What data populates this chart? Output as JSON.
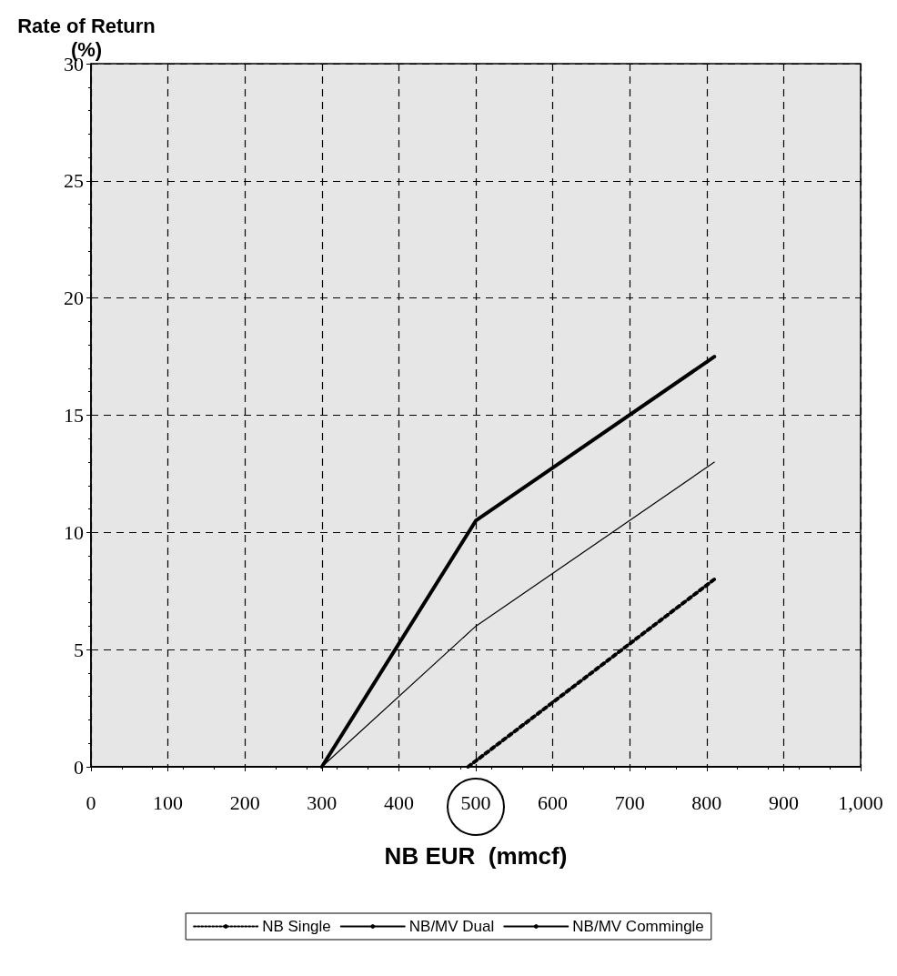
{
  "chart_data": {
    "type": "line",
    "ylabel": "Rate of Return\n(%)",
    "xlabel": "NB EUR  (mmcf)",
    "xlim": [
      0,
      1000
    ],
    "xticks": [
      0,
      100,
      200,
      300,
      400,
      500,
      600,
      700,
      800,
      900,
      {
        "value": 1000,
        "label": "1,000"
      }
    ],
    "ylim": [
      0,
      30
    ],
    "yticks": [
      0,
      5,
      10,
      15,
      20,
      25,
      30
    ],
    "grid": true,
    "legend": "bottom",
    "marker": "none",
    "series": [
      {
        "name": "NB Single",
        "color": "#000000",
        "line_style": "dotted",
        "x": [
          490,
          810
        ],
        "values": [
          0,
          8
        ]
      },
      {
        "name": "NB/MV Dual",
        "color": "#000000",
        "line_style": "solid",
        "x": [
          300,
          500,
          810
        ],
        "values": [
          0,
          6,
          13
        ]
      },
      {
        "name": "NB/MV Commingle",
        "color": "#000000",
        "line_style": "solid",
        "x": [
          300,
          500,
          810
        ],
        "values": [
          0,
          10.5,
          17.5
        ]
      }
    ]
  }
}
